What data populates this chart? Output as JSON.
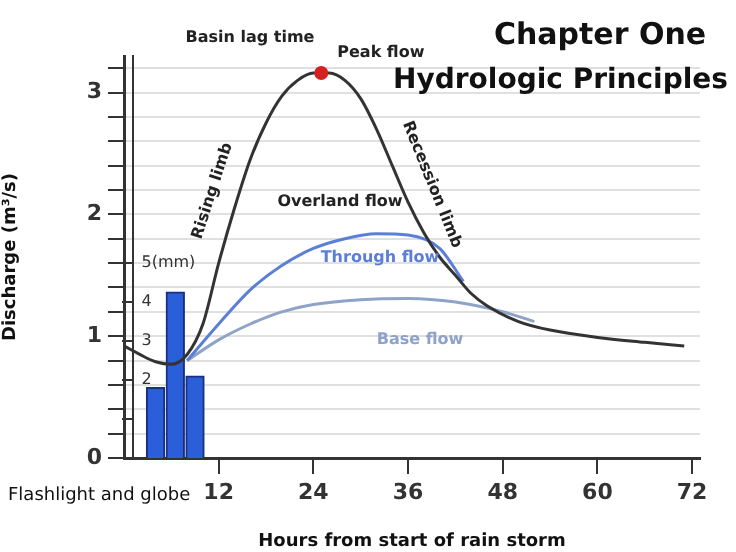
{
  "chart_data": {
    "type": "line",
    "title": "Chapter One",
    "subtitle": "Hydrologic Principles",
    "xlabel": "Hours from start of rain storm",
    "ylabel": "Discharge (m³/s)",
    "xlim": [
      0,
      73
    ],
    "xticks": [
      12,
      24,
      36,
      48,
      60,
      72
    ],
    "ylim": [
      0,
      3.3
    ],
    "yticks": [
      0,
      {
        "value": 0.2,
        "label": null
      },
      {
        "value": 0.4,
        "label": null
      },
      {
        "value": 0.6,
        "label": null
      },
      {
        "value": 0.8,
        "label": null
      },
      1,
      {
        "value": 1.2,
        "label": null
      },
      {
        "value": 1.4,
        "label": null
      },
      {
        "value": 1.6,
        "label": null
      },
      {
        "value": 1.8,
        "label": null
      },
      2,
      {
        "value": 2.2,
        "label": null
      },
      {
        "value": 2.4,
        "label": null
      },
      {
        "value": 2.6,
        "label": null
      },
      {
        "value": 2.8,
        "label": null
      },
      3,
      {
        "value": 3.2,
        "label": null
      }
    ],
    "y2lim": [
      0,
      10.3
    ],
    "y2ticks": [
      {
        "value": 1,
        "label": null
      },
      2,
      3,
      4,
      {
        "value": 5,
        "label": "5(mm)"
      }
    ],
    "grid": "y",
    "marker": "none",
    "line_style": "solid",
    "series": [
      {
        "type": "bar",
        "axis": "y2",
        "color": "#2b5fd9",
        "x": [
          4,
          6.5,
          9
        ],
        "values": [
          1.8,
          4.25,
          2.1
        ]
      },
      {
        "color": "#333333",
        "x": [
          0,
          2,
          4,
          6,
          8,
          10,
          12,
          14,
          16,
          18,
          20,
          22,
          24,
          26,
          28,
          30,
          32,
          34,
          36,
          38,
          40,
          42,
          44,
          46,
          50,
          54,
          60,
          66,
          71
        ],
        "values": [
          0.92,
          0.85,
          0.79,
          0.77,
          0.85,
          1.1,
          1.6,
          2.05,
          2.45,
          2.75,
          2.97,
          3.1,
          3.16,
          3.16,
          3.1,
          2.95,
          2.7,
          2.4,
          2.1,
          1.85,
          1.65,
          1.5,
          1.35,
          1.25,
          1.12,
          1.05,
          0.99,
          0.95,
          0.92
        ]
      },
      {
        "color": "#5b7fd6",
        "x": [
          8,
          12,
          16,
          20,
          24,
          28,
          32,
          36,
          40,
          43
        ],
        "values": [
          0.8,
          1.1,
          1.38,
          1.58,
          1.72,
          1.8,
          1.84,
          1.83,
          1.72,
          1.45
        ]
      },
      {
        "color": "#8fa3c8",
        "x": [
          8,
          12,
          16,
          20,
          24,
          30,
          36,
          42,
          48,
          52
        ],
        "values": [
          0.8,
          0.97,
          1.1,
          1.2,
          1.26,
          1.3,
          1.31,
          1.28,
          1.2,
          1.12
        ]
      }
    ],
    "annotations": [
      "Basin lag time",
      {
        "text": "Peak flow",
        "x": 25,
        "y": 3.16
      },
      {
        "text": "Rising limb",
        "x": 14,
        "y": 2.05
      },
      {
        "text": "Recession limb",
        "x": 36,
        "y": 2.1
      },
      "Overland flow",
      "Through flow",
      "Base flow",
      "Flashlight and globe"
    ]
  }
}
